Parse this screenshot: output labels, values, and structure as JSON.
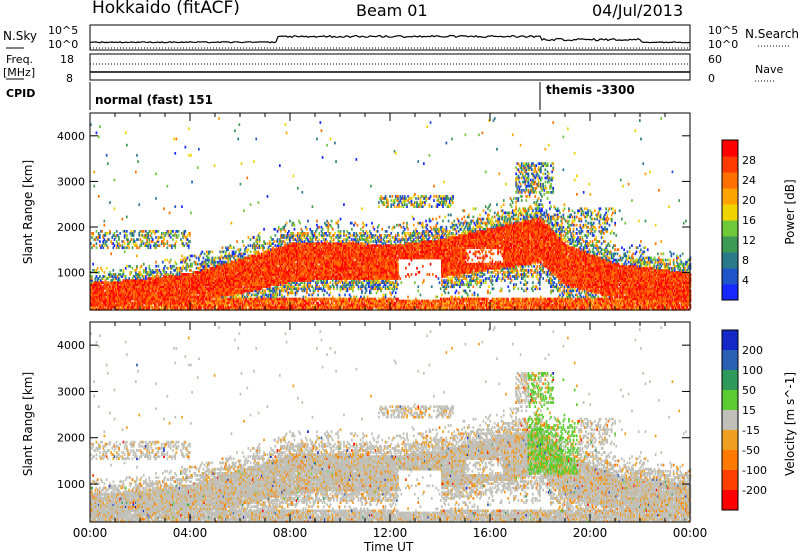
{
  "header": {
    "station": "Hokkaido (fitACF)",
    "beam": "Beam 01",
    "date": "04/Jul/2013"
  },
  "strip": {
    "nsky_label": "N.Sky",
    "nsky_hi": "10^5",
    "nsky_lo": "10^0",
    "nsearch_label": "N.Search",
    "nsearch_hi": "10^5",
    "nsearch_lo": "10^0",
    "freq_label": "Freq.",
    "freq_unit": "[MHz]",
    "freq_hi": "18",
    "freq_lo": "8",
    "nave_label": "Nave",
    "nave_hi": "60",
    "nave_lo": "0",
    "cpid_label": "CPID",
    "cpid_segments": [
      {
        "name": "normal (fast) 151",
        "start_hour": 0.0
      },
      {
        "name": "themis -3300",
        "start_hour": 18.0
      }
    ]
  },
  "chart_data": [
    {
      "type": "heatmap",
      "panel": "power",
      "ylabel": "Slant Range [km]",
      "xlabel": "Time UT",
      "xlim": [
        "00:00",
        "24:00"
      ],
      "x_ticks": [
        "00:00",
        "04:00",
        "08:00",
        "12:00",
        "16:00",
        "20:00",
        "00:00"
      ],
      "ylim": [
        180,
        4500
      ],
      "y_ticks": [
        1000,
        2000,
        3000,
        4000
      ],
      "colorbar": {
        "label": "Power [dB]",
        "ticks": [
          "4",
          "8",
          "12",
          "16",
          "20",
          "24",
          "28"
        ],
        "range": [
          0,
          30
        ],
        "colors": [
          "#1428ff",
          "#1f55c8",
          "#2b7a8a",
          "#3c9a55",
          "#6ec83a",
          "#f0d400",
          "#ffa300",
          "#ff7000",
          "#ff3a00",
          "#ff0000"
        ]
      }
    },
    {
      "type": "heatmap",
      "panel": "velocity",
      "ylabel": "Slant Range [km]",
      "xlabel": "Time UT",
      "xlim": [
        "00:00",
        "24:00"
      ],
      "x_ticks": [
        "00:00",
        "04:00",
        "08:00",
        "12:00",
        "16:00",
        "20:00",
        "00:00"
      ],
      "ylim": [
        180,
        4500
      ],
      "y_ticks": [
        1000,
        2000,
        3000,
        4000
      ],
      "colorbar": {
        "label": "Velocity [m s^-1]",
        "ticks": [
          "200",
          "100",
          "50",
          "15",
          "-15",
          "-50",
          "-100",
          "-200"
        ],
        "range": [
          -250,
          250
        ],
        "colors": [
          "#1428c8",
          "#2a60b4",
          "#2e9a5a",
          "#5ccc33",
          "#c0c0b8",
          "#f0a020",
          "#ff7a00",
          "#ff4000",
          "#ff0000"
        ]
      }
    }
  ]
}
